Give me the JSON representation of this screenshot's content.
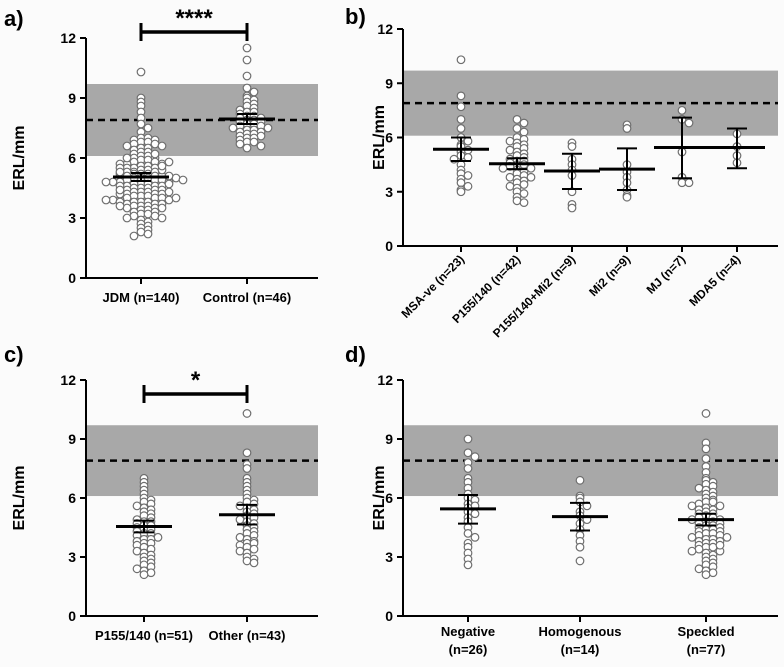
{
  "figure": {
    "colors": {
      "band": "#a8a8a8",
      "axis": "#000000",
      "point_stroke": "#6e6e6e",
      "point_fill": "#ffffff",
      "background": "#fbfbfb"
    }
  },
  "chart_data": [
    {
      "panel": "a)",
      "type": "scatter",
      "ylabel": "ERL/mm",
      "ylim": [
        0,
        12
      ],
      "yticks": [
        "0",
        "3",
        "6",
        "9",
        "12"
      ],
      "reference_band": [
        6.1,
        9.7
      ],
      "reference_line": 7.9,
      "significance": "****",
      "category_label_style": "horizontal",
      "groups": [
        {
          "label": "JDM (n=140)",
          "mean": 5.05,
          "err_low": 4.85,
          "err_high": 5.25,
          "n": 140,
          "values": [
            10.3,
            9.0,
            8.8,
            8.6,
            8.3,
            8.0,
            7.7,
            7.5,
            7.3,
            7.0,
            7.0,
            6.9,
            6.9,
            6.8,
            6.8,
            6.7,
            6.7,
            6.6,
            6.6,
            6.5,
            6.5,
            6.4,
            6.3,
            6.3,
            6.2,
            6.1,
            6.1,
            6.0,
            6.0,
            5.9,
            5.9,
            5.8,
            5.8,
            5.7,
            5.7,
            5.7,
            5.6,
            5.6,
            5.5,
            5.5,
            5.5,
            5.4,
            5.4,
            5.3,
            5.3,
            5.3,
            5.2,
            5.2,
            5.2,
            5.1,
            5.1,
            5.1,
            5.0,
            5.0,
            5.0,
            4.9,
            4.9,
            4.9,
            4.8,
            4.8,
            4.8,
            4.7,
            4.7,
            4.7,
            4.6,
            4.6,
            4.6,
            4.5,
            4.5,
            4.5,
            4.4,
            4.4,
            4.4,
            4.3,
            4.3,
            4.3,
            4.2,
            4.2,
            4.2,
            4.1,
            4.1,
            4.1,
            4.0,
            4.0,
            4.0,
            3.9,
            3.9,
            3.9,
            3.8,
            3.8,
            3.8,
            3.7,
            3.7,
            3.7,
            3.6,
            3.6,
            3.6,
            3.5,
            3.5,
            3.5,
            3.4,
            3.4,
            3.3,
            3.3,
            3.2,
            3.2,
            3.1,
            3.1,
            3.0,
            3.0,
            2.9,
            2.8,
            2.7,
            2.6,
            2.5,
            2.4,
            2.3,
            2.2,
            2.1,
            5.8,
            5.4,
            5.0,
            4.6,
            4.2,
            3.8,
            6.2,
            5.6,
            5.2,
            4.8,
            4.4,
            4.0,
            3.6,
            6.0,
            5.5,
            5.1,
            4.7,
            4.3,
            3.9,
            5.3,
            4.9
          ]
        },
        {
          "label": "Control  (n=46)",
          "mean": 7.95,
          "err_low": 7.7,
          "err_high": 8.2,
          "n": 46,
          "values": [
            11.5,
            10.9,
            10.1,
            9.5,
            9.3,
            9.1,
            9.0,
            8.9,
            8.8,
            8.7,
            8.6,
            8.5,
            8.4,
            8.3,
            8.3,
            8.2,
            8.1,
            8.1,
            8.0,
            8.0,
            7.9,
            7.9,
            7.8,
            7.8,
            7.7,
            7.7,
            7.6,
            7.6,
            7.5,
            7.5,
            7.4,
            7.4,
            7.3,
            7.3,
            7.2,
            7.2,
            7.1,
            7.1,
            7.0,
            7.0,
            6.9,
            6.8,
            6.8,
            6.7,
            6.6,
            6.5
          ]
        }
      ]
    },
    {
      "panel": "b)",
      "type": "scatter",
      "ylabel": "ERL/mm",
      "ylim": [
        0,
        12
      ],
      "yticks": [
        "0",
        "3",
        "6",
        "9",
        "12"
      ],
      "reference_band": [
        6.1,
        9.7
      ],
      "reference_line": 7.9,
      "category_label_style": "rotated",
      "groups": [
        {
          "label": "MSA-ve (n=23)",
          "mean": 5.35,
          "err_low": 4.7,
          "err_high": 6.0,
          "n": 23,
          "values": [
            10.3,
            8.3,
            7.7,
            7.0,
            6.5,
            6.0,
            5.8,
            5.6,
            5.5,
            5.3,
            5.2,
            5.0,
            4.9,
            4.8,
            4.5,
            4.2,
            4.0,
            3.9,
            3.7,
            3.5,
            3.3,
            3.1,
            3.0
          ]
        },
        {
          "label": "P155/140 (n=42)",
          "mean": 4.55,
          "err_low": 4.25,
          "err_high": 4.85,
          "n": 42,
          "values": [
            7.0,
            6.8,
            6.5,
            6.3,
            6.0,
            5.9,
            5.8,
            5.7,
            5.6,
            5.5,
            5.4,
            5.3,
            5.2,
            5.1,
            5.0,
            4.9,
            4.8,
            4.7,
            4.7,
            4.6,
            4.5,
            4.5,
            4.4,
            4.3,
            4.3,
            4.2,
            4.1,
            4.0,
            3.9,
            3.8,
            3.8,
            3.7,
            3.6,
            3.5,
            3.4,
            3.3,
            3.2,
            3.0,
            2.9,
            2.7,
            2.5,
            2.4
          ]
        },
        {
          "label": "P155/140+Mi2 (n=9)",
          "mean": 4.15,
          "err_low": 3.15,
          "err_high": 5.1,
          "n": 9,
          "values": [
            5.7,
            5.5,
            4.8,
            4.5,
            4.2,
            3.9,
            3.0,
            2.3,
            2.1
          ]
        },
        {
          "label": "Mi2 (n=9)",
          "mean": 4.25,
          "err_low": 3.1,
          "err_high": 5.4,
          "n": 9,
          "values": [
            6.7,
            6.5,
            4.5,
            4.1,
            3.8,
            3.5,
            3.1,
            2.8,
            2.7
          ]
        },
        {
          "label": "MJ (n=7)",
          "mean": 5.45,
          "err_low": 3.75,
          "err_high": 7.1,
          "n": 7,
          "values": [
            7.5,
            7.0,
            6.8,
            5.2,
            3.8,
            3.5,
            3.5
          ]
        },
        {
          "label": "MDA5 (n=4)",
          "mean": 5.45,
          "err_low": 4.3,
          "err_high": 6.5,
          "n": 4,
          "values": [
            6.2,
            5.5,
            5.0,
            4.6
          ]
        }
      ]
    },
    {
      "panel": "c)",
      "type": "scatter",
      "ylabel": "ERL/mm",
      "ylim": [
        0,
        12
      ],
      "yticks": [
        "0",
        "3",
        "6",
        "9",
        "12"
      ],
      "reference_band": [
        6.1,
        9.7
      ],
      "reference_line": 7.9,
      "significance": "*",
      "category_label_style": "horizontal",
      "groups": [
        {
          "label": "P155/140 (n=51)",
          "mean": 4.55,
          "err_low": 4.25,
          "err_high": 4.85,
          "n": 51,
          "values": [
            7.0,
            6.8,
            6.6,
            6.4,
            6.2,
            6.0,
            5.9,
            5.8,
            5.7,
            5.6,
            5.5,
            5.4,
            5.3,
            5.2,
            5.1,
            5.0,
            4.9,
            4.8,
            4.8,
            4.7,
            4.6,
            4.6,
            4.5,
            4.4,
            4.4,
            4.3,
            4.2,
            4.2,
            4.1,
            4.0,
            3.9,
            3.9,
            3.8,
            3.7,
            3.7,
            3.6,
            3.5,
            3.4,
            3.3,
            3.2,
            3.1,
            3.0,
            2.9,
            2.8,
            2.7,
            2.6,
            2.5,
            2.4,
            2.3,
            2.2,
            2.1
          ]
        },
        {
          "label": "Other (n=43)",
          "mean": 5.15,
          "err_low": 4.65,
          "err_high": 5.65,
          "n": 43,
          "values": [
            10.3,
            8.3,
            7.7,
            7.5,
            7.0,
            6.8,
            6.6,
            6.4,
            6.2,
            6.0,
            5.9,
            5.8,
            5.7,
            5.6,
            5.5,
            5.4,
            5.3,
            5.2,
            5.1,
            5.0,
            4.9,
            4.8,
            4.7,
            4.6,
            4.5,
            4.4,
            4.3,
            4.2,
            4.1,
            4.0,
            3.9,
            3.8,
            3.7,
            3.7,
            3.6,
            3.5,
            3.4,
            3.3,
            3.2,
            3.0,
            2.9,
            2.8,
            2.7
          ]
        }
      ]
    },
    {
      "panel": "d)",
      "type": "scatter",
      "ylabel": "ERL/mm",
      "ylim": [
        0,
        12
      ],
      "yticks": [
        "0",
        "3",
        "6",
        "9",
        "12"
      ],
      "reference_band": [
        6.1,
        9.7
      ],
      "reference_line": 7.9,
      "category_label_style": "two-line",
      "groups": [
        {
          "label": "Negative",
          "sublabel": "(n=26)",
          "mean": 5.45,
          "err_low": 4.7,
          "err_high": 6.15,
          "n": 26,
          "values": [
            9.0,
            8.3,
            8.1,
            7.8,
            7.5,
            7.0,
            6.8,
            6.5,
            6.2,
            6.0,
            5.9,
            5.7,
            5.6,
            5.5,
            5.3,
            5.2,
            5.0,
            4.8,
            4.5,
            4.2,
            4.0,
            3.7,
            3.5,
            3.2,
            2.9,
            2.6
          ]
        },
        {
          "label": "Homogenous",
          "sublabel": "(n=14)",
          "mean": 5.05,
          "err_low": 4.35,
          "err_high": 5.75,
          "n": 14,
          "values": [
            6.9,
            6.1,
            6.0,
            5.8,
            5.6,
            5.3,
            5.1,
            4.9,
            4.7,
            4.4,
            4.1,
            3.8,
            3.5,
            2.8
          ]
        },
        {
          "label": "Speckled",
          "sublabel": "(n=77)",
          "mean": 4.9,
          "err_low": 4.6,
          "err_high": 5.2,
          "n": 77,
          "values": [
            10.3,
            8.8,
            8.5,
            8.0,
            7.6,
            7.3,
            7.0,
            6.9,
            6.8,
            6.7,
            6.6,
            6.5,
            6.4,
            6.3,
            6.2,
            6.1,
            6.0,
            5.9,
            5.8,
            5.8,
            5.7,
            5.6,
            5.6,
            5.5,
            5.4,
            5.4,
            5.3,
            5.2,
            5.2,
            5.1,
            5.0,
            5.0,
            4.9,
            4.9,
            4.8,
            4.8,
            4.7,
            4.7,
            4.6,
            4.6,
            4.5,
            4.5,
            4.4,
            4.4,
            4.3,
            4.3,
            4.2,
            4.2,
            4.1,
            4.1,
            4.0,
            4.0,
            3.9,
            3.9,
            3.8,
            3.8,
            3.7,
            3.7,
            3.6,
            3.5,
            3.5,
            3.4,
            3.3,
            3.3,
            3.2,
            3.1,
            3.0,
            2.9,
            2.8,
            2.7,
            2.6,
            2.5,
            2.4,
            2.3,
            2.2,
            2.1,
            3.6
          ]
        }
      ]
    }
  ]
}
